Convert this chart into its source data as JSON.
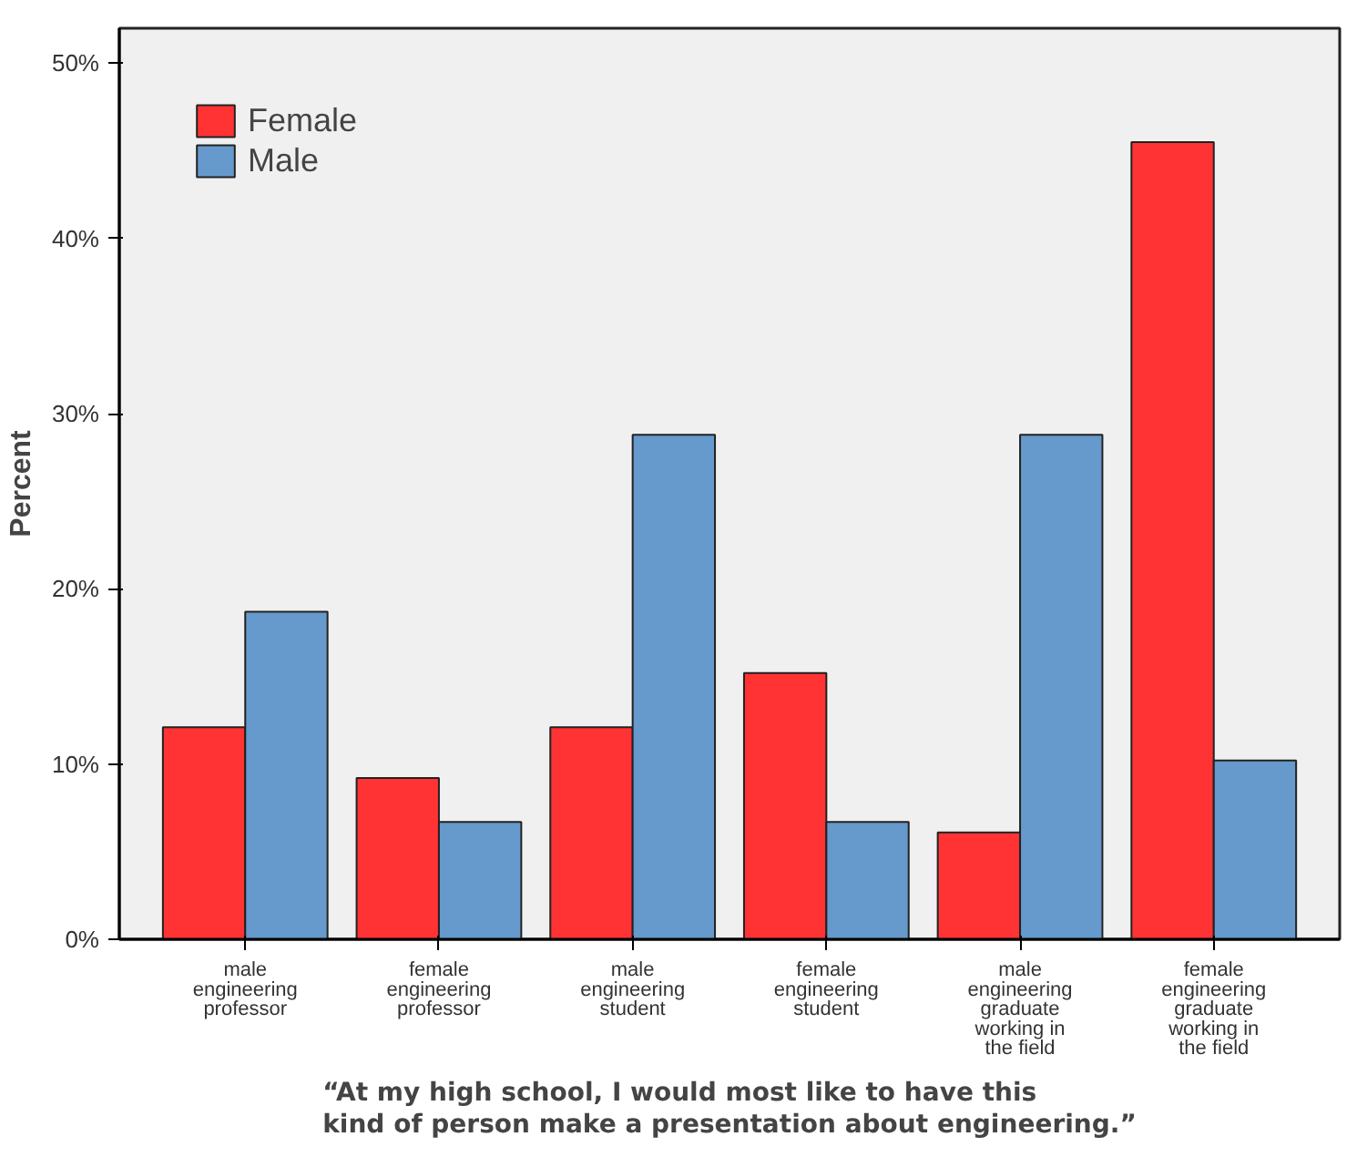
{
  "chart_data": {
    "type": "bar",
    "ylabel": "Percent",
    "categories": [
      "male\nengineering\nprofessor",
      "female\nengineering\nprofessor",
      "male\nengineering\nstudent",
      "female\nengineering\nstudent",
      "male\nengineering\ngraduate\nworking in\nthe field",
      "female\nengineering\ngraduate\nworking in\nthe field"
    ],
    "series": [
      {
        "name": "Female",
        "color": "#ff3333",
        "values": [
          12.1,
          9.2,
          12.1,
          15.2,
          6.1,
          45.5
        ]
      },
      {
        "name": "Male",
        "color": "#6699cc",
        "values": [
          18.7,
          6.7,
          28.8,
          6.7,
          28.8,
          10.2
        ]
      }
    ],
    "ylim": [
      0,
      52
    ],
    "yticks": [
      {
        "value": 0,
        "label": "0%"
      },
      {
        "value": 10,
        "label": "10%"
      },
      {
        "value": 20,
        "label": "20%"
      },
      {
        "value": 30,
        "label": "30%"
      },
      {
        "value": 40,
        "label": "40%"
      },
      {
        "value": 50,
        "label": "50%"
      }
    ],
    "grid": false,
    "legend": "top left",
    "annotations": [
      "“At my high school, I would most like to have this\nkind of person make a presentation about engineering.”"
    ]
  }
}
